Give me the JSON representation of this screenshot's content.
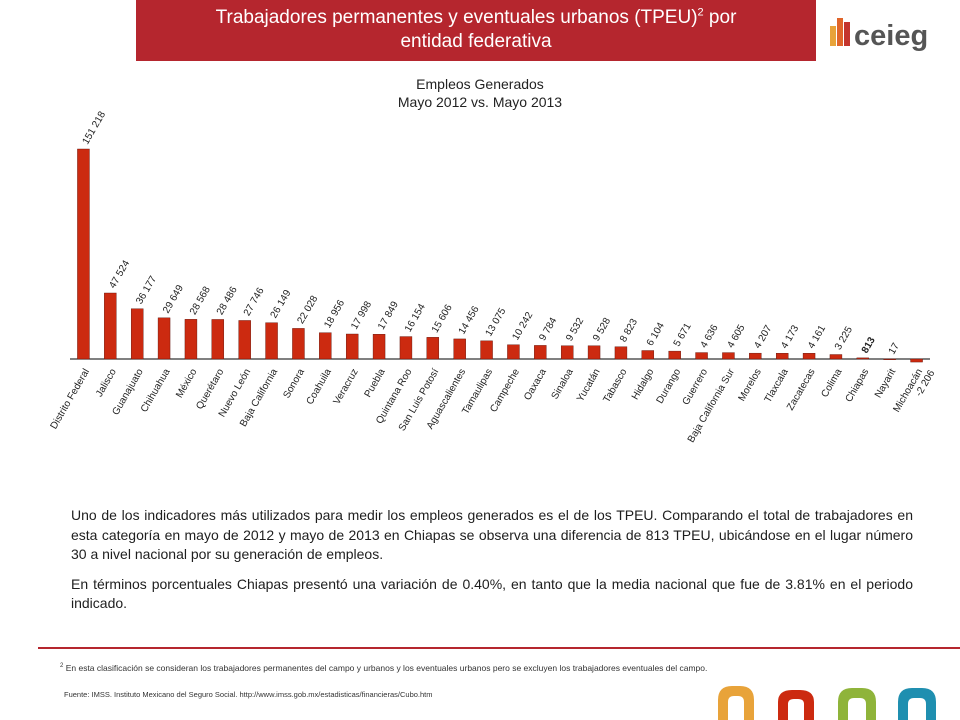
{
  "header": {
    "title_main": "Trabajadores permanentes y eventuales urbanos (TPEU)",
    "title_sup": "2",
    "title_tail": " por",
    "title_line2": "entidad federativa",
    "logo_text": "ceieg",
    "colors": {
      "banner": "#b5262e",
      "bar": "#cc2a10",
      "logo_text": "#555555"
    }
  },
  "chart_data": {
    "type": "bar",
    "title": "Empleos Generados",
    "subtitle": "Mayo 2012  vs. Mayo 2013",
    "categories": [
      "Distrito Federal",
      "Jalisco",
      "Guanajuato",
      "Chihuahua",
      "México",
      "Querétaro",
      "Nuevo León",
      "Baja California",
      "Sonora",
      "Coahuila",
      "Veracruz",
      "Puebla",
      "Quintana Roo",
      "San Luis Potosí",
      "Aguascalientes",
      "Tamaulipas",
      "Campeche",
      "Oaxaca",
      "Sinaloa",
      "Yucatán",
      "Tabasco",
      "Hidalgo",
      "Durango",
      "Guerrero",
      "Baja California Sur",
      "Morelos",
      "Tlaxcala",
      "Zacatecas",
      "Colima",
      "Chiapas",
      "Nayarit",
      "Michoacán"
    ],
    "values": [
      151218,
      47524,
      36177,
      29649,
      28568,
      28486,
      27746,
      26149,
      22028,
      18956,
      17998,
      17849,
      16154,
      15606,
      14456,
      13075,
      10242,
      9784,
      9532,
      9528,
      8823,
      6104,
      5671,
      4636,
      4605,
      4207,
      4173,
      4161,
      3225,
      813,
      17,
      -2206
    ],
    "value_labels": [
      "151 218",
      "47 524",
      "36 177",
      "29 649",
      "28 568",
      "28 486",
      "27 746",
      "26 149",
      "22 028",
      "18 956",
      "17 998",
      "17 849",
      "16 154",
      "15 606",
      "14 456",
      "13 075",
      "10 242",
      "9 784",
      "9 532",
      "9 528",
      "8 823",
      "6 104",
      "5 671",
      "4 636",
      "4 605",
      "4 207",
      "4 173",
      "4 161",
      "3 225",
      "813",
      "17",
      "-2 206"
    ],
    "highlight": "Chiapas",
    "xlabel": "",
    "ylabel": "",
    "ylim": [
      -2206,
      151218
    ],
    "grid": false,
    "legend": "none"
  },
  "text": {
    "paragraph1": "Uno de los indicadores más utilizados para medir los empleos generados es el de los TPEU. Comparando el total de trabajadores en esta categoría en mayo de 2012 y mayo de 2013 en Chiapas se observa una diferencia de 813 TPEU, ubicándose en el lugar número 30 a nivel nacional por su generación de empleos.",
    "paragraph2": "En términos porcentuales Chiapas presentó una variación de 0.40%, en tanto que la media nacional que fue de 3.81% en el periodo indicado."
  },
  "footer": {
    "footnote_sup": "2",
    "footnote": " En esta clasificación se consideran los trabajadores permanentes del campo y urbanos y los eventuales urbanos pero se excluyen los trabajadores eventuales del campo.",
    "source": "Fuente:   IMSS. Instituto Mexicano del Seguro Social. http://www.imss.gob.mx/estadisticas/financieras/Cubo.htm"
  }
}
